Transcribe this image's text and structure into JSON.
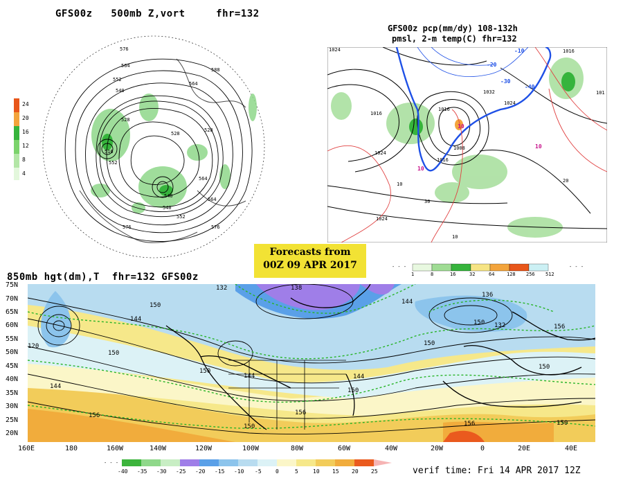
{
  "panel1": {
    "title": "GFS00z   500mb Z,vort     fhr=132",
    "legend_values": [
      "24",
      "20",
      "16",
      "12",
      "8",
      "4"
    ],
    "legend_colors": [
      "#e8561a",
      "#f3a43c",
      "#36b43c",
      "#7bd36b",
      "#b3e6a6",
      "#e3f7dc"
    ],
    "contour_labels": [
      "576",
      "564",
      "552",
      "540",
      "528",
      "516",
      "528",
      "540",
      "552",
      "564",
      "576",
      "588",
      "564",
      "528",
      "540",
      "552",
      "564",
      "576"
    ]
  },
  "panel2": {
    "title_line1": "GFS00z pcp(mm/dy) 108-132h",
    "title_line2": "pmsl, 2-m temp(C)  fhr=132",
    "labels": [
      "1024",
      "1016",
      "1024",
      "1016",
      "1008",
      "1032",
      "1024",
      "1016",
      "1016",
      "1024",
      "-10",
      "-20",
      "-30",
      "-40",
      "10",
      "10",
      "10",
      "30",
      "20",
      "10",
      "10",
      "101"
    ]
  },
  "forecast_box": {
    "line1": "Forecasts from",
    "line2": "00Z 09 APR 2017"
  },
  "pcp_legend": {
    "labels": [
      "1",
      "8",
      "16",
      "32",
      "64",
      "128",
      "256",
      "512"
    ],
    "colors": [
      "#e8f8e0",
      "#9fdc94",
      "#36b43c",
      "#f6e484",
      "#f3a43c",
      "#e8561a",
      "#ccf0f4"
    ]
  },
  "panel3": {
    "title": "850mb hgt(dm),T  fhr=132 GFS00z",
    "lat_labels": [
      "75N",
      "70N",
      "65N",
      "60N",
      "55N",
      "50N",
      "45N",
      "40N",
      "35N",
      "30N",
      "25N",
      "20N"
    ],
    "lon_labels": [
      "160E",
      "180",
      "160W",
      "140W",
      "120W",
      "100W",
      "80W",
      "60W",
      "40W",
      "20W",
      "0",
      "20E",
      "40E"
    ],
    "contour_labels": [
      "150",
      "144",
      "138",
      "132",
      "120",
      "150",
      "144",
      "150",
      "144",
      "150",
      "156",
      "150",
      "136",
      "132",
      "144",
      "150",
      "156",
      "150",
      "144",
      "156",
      "150",
      "156",
      "150"
    ]
  },
  "temp_legend": {
    "labels": [
      "-40",
      "-35",
      "-30",
      "-25",
      "-20",
      "-15",
      "-10",
      "-5",
      "0",
      "5",
      "10",
      "15",
      "20",
      "25"
    ],
    "colors": [
      "#3cb43c",
      "#8fd88a",
      "#c8eec4",
      "#9f7ee8",
      "#5aa0e8",
      "#8cc4ec",
      "#b8dcf0",
      "#dcf2f6",
      "#fbf6c8",
      "#f6e88a",
      "#f2cc5a",
      "#f1ac3c",
      "#ea5a1e"
    ]
  },
  "verif_time": "verif time: Fri 14 APR 2017 12Z"
}
